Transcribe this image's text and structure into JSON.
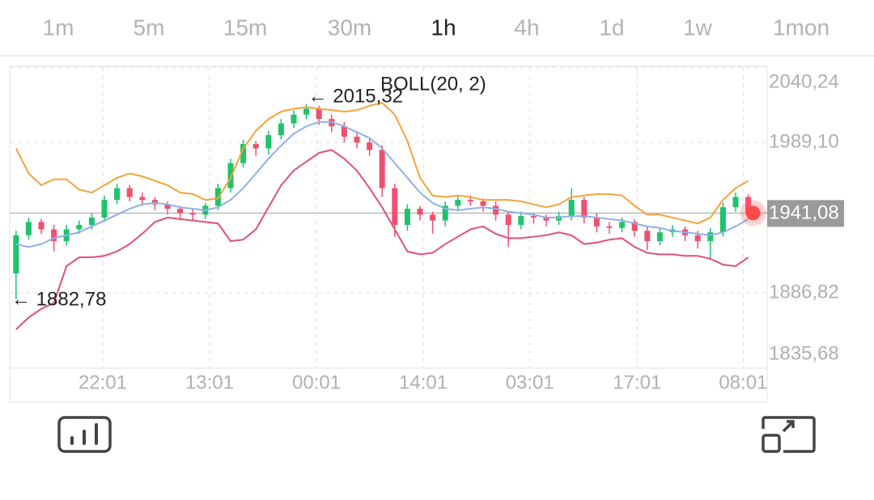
{
  "tabs": {
    "items": [
      "1m",
      "5m",
      "15m",
      "30m",
      "1h",
      "4h",
      "1d",
      "1w",
      "1mon"
    ],
    "active": 4
  },
  "chart_data": {
    "type": "candlestick",
    "indicator_label": "BOLL(20, 2)",
    "up_color": "#1fc36b",
    "down_color": "#f0506e",
    "open": [
      1900,
      1926,
      1935,
      1930,
      1922,
      1930,
      1933,
      1938,
      1950,
      1958,
      1952,
      1950,
      1947,
      1944,
      1941,
      1940,
      1946,
      1958,
      1975,
      1988,
      1985,
      1994,
      2002,
      2008,
      2012,
      2005,
      2000,
      1993,
      1989,
      1984,
      1958,
      1933,
      1944,
      1940,
      1936,
      1946,
      1950,
      1949,
      1946,
      1940,
      1933,
      1939,
      1938,
      1936,
      1939,
      1950,
      1938,
      1932,
      1931,
      1935,
      1929,
      1922,
      1928,
      1930,
      1926,
      1922,
      1928,
      1945,
      1952
    ],
    "high": [
      1929,
      1938,
      1937,
      1933,
      1933,
      1936,
      1941,
      1953,
      1961,
      1960,
      1955,
      1952,
      1949,
      1946,
      1944,
      1948,
      1961,
      1978,
      1991,
      1990,
      1997,
      2005,
      2011,
      2015.32,
      2014,
      2008,
      2003,
      1996,
      1992,
      1987,
      1961,
      1947,
      1946,
      1942,
      1949,
      1953,
      1953,
      1951,
      1949,
      1942,
      1942,
      1941,
      1940,
      1942,
      1958,
      1952,
      1941,
      1935,
      1938,
      1937,
      1932,
      1931,
      1933,
      1932,
      1929,
      1931,
      1948,
      1955,
      1954
    ],
    "low": [
      1882.78,
      1923,
      1927,
      1915,
      1919,
      1927,
      1930,
      1935,
      1947,
      1949,
      1946,
      1943,
      1940,
      1936,
      1936,
      1937,
      1943,
      1955,
      1972,
      1980,
      1981,
      1991,
      1999,
      2005,
      2001,
      1996,
      1989,
      1985,
      1980,
      1952,
      1925,
      1929,
      1936,
      1927,
      1932,
      1943,
      1946,
      1942,
      1936,
      1918,
      1930,
      1934,
      1932,
      1933,
      1936,
      1934,
      1928,
      1927,
      1928,
      1925,
      1916,
      1919,
      1925,
      1922,
      1917,
      1910,
      1925,
      1942,
      1938
    ],
    "close": [
      1926,
      1935,
      1930,
      1922,
      1930,
      1933,
      1938,
      1950,
      1958,
      1952,
      1950,
      1947,
      1944,
      1941,
      1940,
      1946,
      1958,
      1975,
      1988,
      1985,
      1994,
      2002,
      2008,
      2012,
      2005,
      2000,
      1993,
      1989,
      1984,
      1958,
      1933,
      1944,
      1940,
      1936,
      1946,
      1950,
      1949,
      1946,
      1940,
      1933,
      1939,
      1938,
      1936,
      1939,
      1950,
      1938,
      1932,
      1931,
      1935,
      1929,
      1922,
      1928,
      1930,
      1926,
      1922,
      1928,
      1945,
      1952,
      1941.08
    ],
    "bands": [
      {
        "color": "#f5a33c",
        "values": [
          1985,
          1968,
          1960,
          1964,
          1964,
          1957,
          1955,
          1960,
          1965,
          1968,
          1966,
          1963,
          1960,
          1955,
          1954,
          1950,
          1951,
          1965,
          1985,
          1997,
          2005,
          2010,
          2012,
          2013,
          2012,
          2011,
          2010,
          2011,
          2014,
          2016,
          2008,
          1990,
          1965,
          1953,
          1952,
          1953,
          1952,
          1950,
          1950,
          1950,
          1949,
          1947,
          1945,
          1947,
          1952,
          1953,
          1954,
          1954,
          1953,
          1946,
          1940,
          1940,
          1938,
          1936,
          1934,
          1938,
          1950,
          1958,
          1963
        ]
      },
      {
        "color": "#8fb0e8",
        "values": [
          1920,
          1918,
          1920,
          1924,
          1926,
          1928,
          1932,
          1936,
          1940,
          1944,
          1947,
          1948,
          1947,
          1945,
          1944,
          1943,
          1945,
          1950,
          1958,
          1968,
          1978,
          1987,
          1995,
          2000,
          2003,
          2003,
          2000,
          1996,
          1992,
          1985,
          1975,
          1965,
          1955,
          1948,
          1944,
          1943,
          1944,
          1945,
          1944,
          1942,
          1941,
          1940,
          1938,
          1938,
          1939,
          1939,
          1938,
          1937,
          1936,
          1934,
          1932,
          1931,
          1929,
          1928,
          1927,
          1926,
          1928,
          1932,
          1937
        ]
      },
      {
        "color": "#e0507a",
        "values": [
          1862,
          1870,
          1876,
          1880,
          1905,
          1911,
          1911,
          1912,
          1915,
          1920,
          1927,
          1935,
          1938,
          1937,
          1936,
          1935,
          1934,
          1922,
          1923,
          1930,
          1945,
          1960,
          1970,
          1976,
          1982,
          1984,
          1978,
          1970,
          1958,
          1945,
          1930,
          1915,
          1913,
          1914,
          1920,
          1925,
          1930,
          1932,
          1927,
          1924,
          1924,
          1925,
          1926,
          1928,
          1926,
          1920,
          1921,
          1923,
          1924,
          1918,
          1914,
          1913,
          1913,
          1912,
          1912,
          1910,
          1906,
          1905,
          1911
        ]
      }
    ],
    "high_label": {
      "value": 2015.32,
      "label": "← 2015,32"
    },
    "low_label": {
      "value": 1882.78,
      "label": "← 1882,78"
    },
    "last_price": {
      "value": 1941.08,
      "label": "1941,08"
    },
    "xlim": [
      0,
      60
    ],
    "xticks": [
      {
        "value": 7.37,
        "label": "22:01"
      },
      {
        "value": 15.83,
        "label": "13:01"
      },
      {
        "value": 24.3,
        "label": "00:01"
      },
      {
        "value": 32.76,
        "label": "14:01"
      },
      {
        "value": 41.2,
        "label": "03:01"
      },
      {
        "value": 49.7,
        "label": "17:01"
      },
      {
        "value": 58.1,
        "label": "08:01"
      }
    ],
    "ylim": [
      1835.68,
      2040.24
    ],
    "yticks": [
      {
        "value": 1835.68,
        "label": "1835,68"
      },
      {
        "value": 1886.82,
        "label": "1886,82"
      },
      {
        "value": 1989.1,
        "label": "1989,10"
      },
      {
        "value": 2040.24,
        "label": "2040,24"
      }
    ],
    "grid": true
  }
}
